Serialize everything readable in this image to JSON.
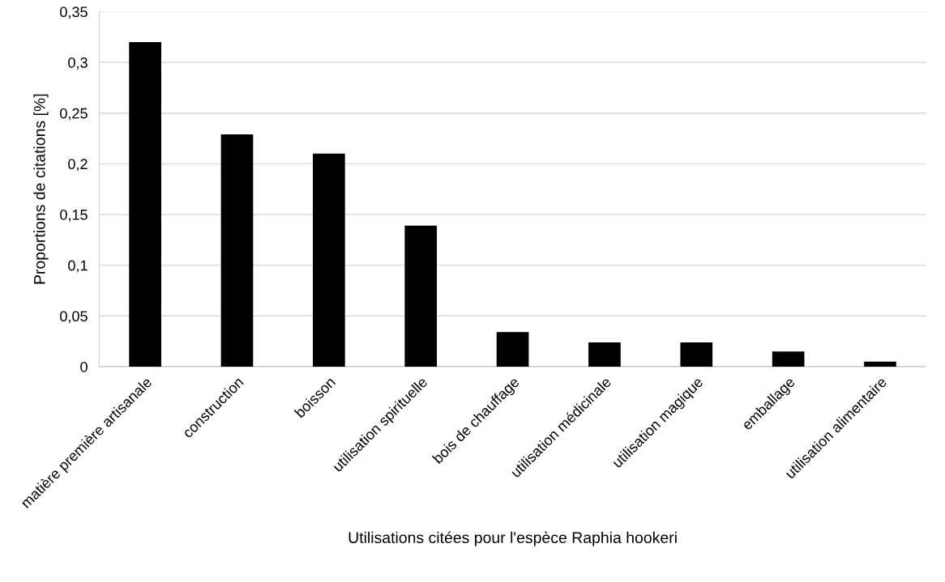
{
  "chart_data": {
    "type": "bar",
    "xlabel": "Utilisations citées pour l'espèce Raphia hookeri",
    "ylabel": "Proportions de citations [%]",
    "categories": [
      "matière première artisanale",
      "construction",
      "boisson",
      "utilisation spirituelle",
      "bois de chauffage",
      "utilisation médicinale",
      "utilisation magique",
      "emballage",
      "utilisation alimentaire"
    ],
    "values": [
      0.32,
      0.229,
      0.21,
      0.139,
      0.034,
      0.024,
      0.024,
      0.015,
      0.005
    ],
    "color": "#000000",
    "ylim": [
      0,
      0.35
    ],
    "yticks": [
      {
        "value": 0,
        "label": "0"
      },
      {
        "value": 0.05,
        "label": "0,05"
      },
      {
        "value": 0.1,
        "label": "0,1"
      },
      {
        "value": 0.15,
        "label": "0,15"
      },
      {
        "value": 0.2,
        "label": "0,2"
      },
      {
        "value": 0.25,
        "label": "0,25"
      },
      {
        "value": 0.3,
        "label": "0,3"
      },
      {
        "value": 0.35,
        "label": "0,35"
      }
    ],
    "grid": "y",
    "legend": false
  }
}
